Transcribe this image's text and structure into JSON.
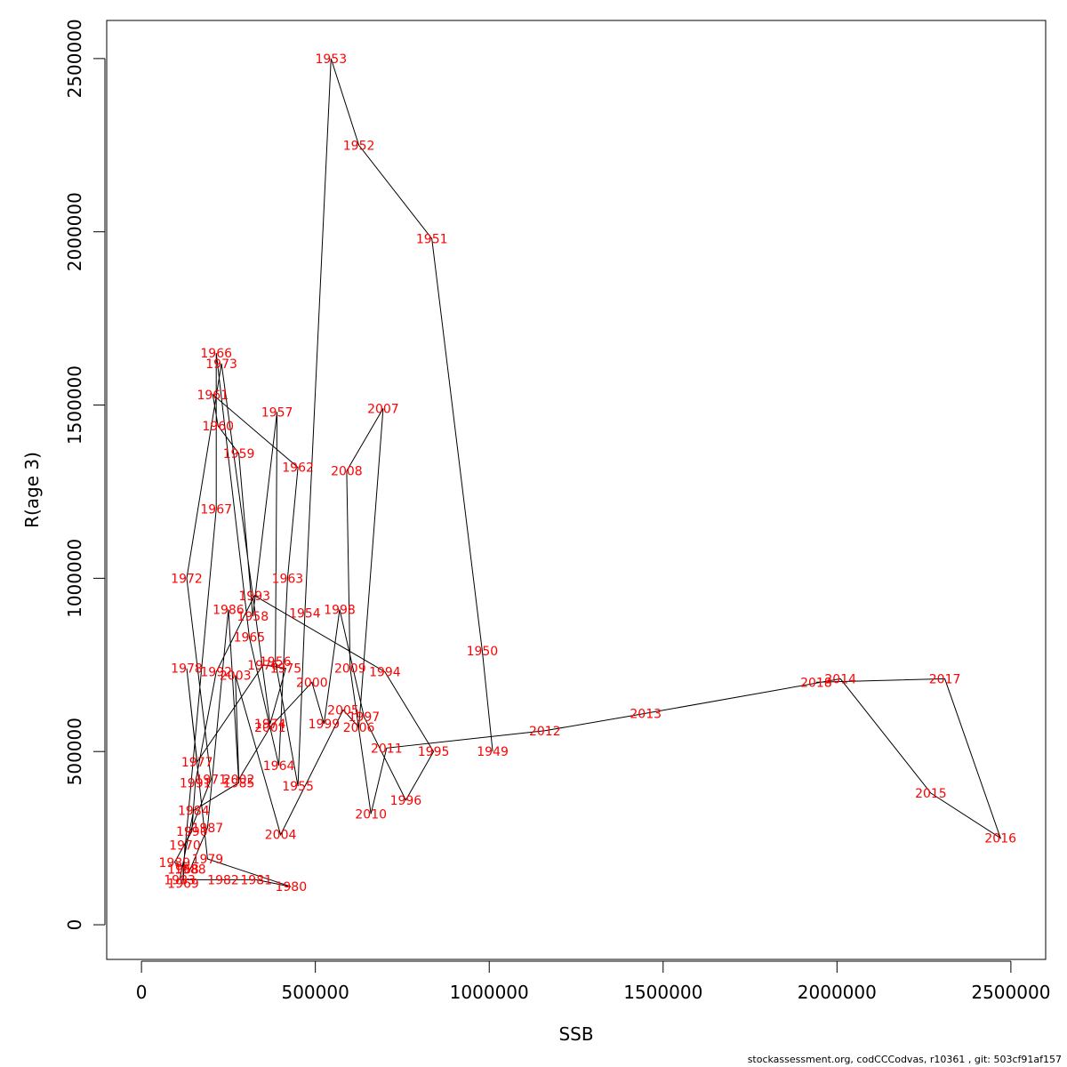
{
  "chart_data": {
    "type": "line",
    "xlabel": "SSB",
    "ylabel": "R(age 3)",
    "xlim": [
      -100000,
      2600000
    ],
    "ylim": [
      -100000,
      2610000
    ],
    "x_ticks": [
      0,
      500000,
      1000000,
      1500000,
      2000000,
      2500000
    ],
    "y_ticks": [
      0,
      500000,
      1000000,
      1500000,
      2000000,
      2500000
    ],
    "x_tick_labels": [
      "0",
      "500000",
      "1000000",
      "1500000",
      "2000000",
      "2500000"
    ],
    "y_tick_labels": [
      "0",
      "500000",
      "1000000",
      "1500000",
      "2000000",
      "2500000"
    ],
    "grid": false,
    "line_color": "#000000",
    "label_color": "#ff0000",
    "points": [
      {
        "label": "1949",
        "ssb": 1010000,
        "r": 500000
      },
      {
        "label": "1950",
        "ssb": 980000,
        "r": 790000
      },
      {
        "label": "1951",
        "ssb": 835000,
        "r": 1980000
      },
      {
        "label": "1952",
        "ssb": 625000,
        "r": 2250000
      },
      {
        "label": "1953",
        "ssb": 545000,
        "r": 2500000
      },
      {
        "label": "1954",
        "ssb": 470000,
        "r": 900000
      },
      {
        "label": "1955",
        "ssb": 450000,
        "r": 400000
      },
      {
        "label": "1956",
        "ssb": 385000,
        "r": 760000
      },
      {
        "label": "1957",
        "ssb": 390000,
        "r": 1480000
      },
      {
        "label": "1958",
        "ssb": 320000,
        "r": 890000
      },
      {
        "label": "1959",
        "ssb": 280000,
        "r": 1360000
      },
      {
        "label": "1960",
        "ssb": 220000,
        "r": 1440000
      },
      {
        "label": "1961",
        "ssb": 205000,
        "r": 1530000
      },
      {
        "label": "1962",
        "ssb": 450000,
        "r": 1320000
      },
      {
        "label": "1963",
        "ssb": 420000,
        "r": 1000000
      },
      {
        "label": "1964",
        "ssb": 395000,
        "r": 460000
      },
      {
        "label": "1965",
        "ssb": 310000,
        "r": 830000
      },
      {
        "label": "1966",
        "ssb": 215000,
        "r": 1650000
      },
      {
        "label": "1967",
        "ssb": 215000,
        "r": 1200000
      },
      {
        "label": "1968",
        "ssb": 120000,
        "r": 160000
      },
      {
        "label": "1969",
        "ssb": 120000,
        "r": 120000
      },
      {
        "label": "1970",
        "ssb": 125000,
        "r": 230000
      },
      {
        "label": "1971",
        "ssb": 200000,
        "r": 420000
      },
      {
        "label": "1972",
        "ssb": 130000,
        "r": 1000000
      },
      {
        "label": "1973",
        "ssb": 230000,
        "r": 1620000
      },
      {
        "label": "1974",
        "ssb": 370000,
        "r": 580000
      },
      {
        "label": "1975",
        "ssb": 415000,
        "r": 740000
      },
      {
        "label": "1976",
        "ssb": 350000,
        "r": 750000
      },
      {
        "label": "1977",
        "ssb": 160000,
        "r": 470000
      },
      {
        "label": "1978",
        "ssb": 130000,
        "r": 740000
      },
      {
        "label": "1979",
        "ssb": 190000,
        "r": 190000
      },
      {
        "label": "1980",
        "ssb": 430000,
        "r": 110000
      },
      {
        "label": "1981",
        "ssb": 330000,
        "r": 130000
      },
      {
        "label": "1982",
        "ssb": 235000,
        "r": 130000
      },
      {
        "label": "1983",
        "ssb": 110000,
        "r": 130000
      },
      {
        "label": "1984",
        "ssb": 150000,
        "r": 330000
      },
      {
        "label": "1985",
        "ssb": 280000,
        "r": 410000
      },
      {
        "label": "1986",
        "ssb": 250000,
        "r": 910000
      },
      {
        "label": "1987",
        "ssb": 190000,
        "r": 280000
      },
      {
        "label": "1988",
        "ssb": 140000,
        "r": 160000
      },
      {
        "label": "1989",
        "ssb": 95000,
        "r": 180000
      },
      {
        "label": "1990",
        "ssb": 145000,
        "r": 270000
      },
      {
        "label": "1991",
        "ssb": 155000,
        "r": 410000
      },
      {
        "label": "1992",
        "ssb": 215000,
        "r": 730000
      },
      {
        "label": "1993",
        "ssb": 325000,
        "r": 950000
      },
      {
        "label": "1994",
        "ssb": 700000,
        "r": 730000
      },
      {
        "label": "1995",
        "ssb": 840000,
        "r": 500000
      },
      {
        "label": "1996",
        "ssb": 760000,
        "r": 360000
      },
      {
        "label": "1997",
        "ssb": 640000,
        "r": 600000
      },
      {
        "label": "1998",
        "ssb": 570000,
        "r": 910000
      },
      {
        "label": "1999",
        "ssb": 525000,
        "r": 580000
      },
      {
        "label": "2000",
        "ssb": 490000,
        "r": 700000
      },
      {
        "label": "2001",
        "ssb": 370000,
        "r": 570000
      },
      {
        "label": "2002",
        "ssb": 280000,
        "r": 420000
      },
      {
        "label": "2003",
        "ssb": 270000,
        "r": 720000
      },
      {
        "label": "2004",
        "ssb": 400000,
        "r": 260000
      },
      {
        "label": "2005",
        "ssb": 580000,
        "r": 620000
      },
      {
        "label": "2006",
        "ssb": 625000,
        "r": 570000
      },
      {
        "label": "2007",
        "ssb": 695000,
        "r": 1490000
      },
      {
        "label": "2008",
        "ssb": 590000,
        "r": 1310000
      },
      {
        "label": "2009",
        "ssb": 600000,
        "r": 740000
      },
      {
        "label": "2010",
        "ssb": 660000,
        "r": 320000
      },
      {
        "label": "2011",
        "ssb": 705000,
        "r": 510000
      },
      {
        "label": "2012",
        "ssb": 1160000,
        "r": 560000
      },
      {
        "label": "2013",
        "ssb": 1450000,
        "r": 610000
      },
      {
        "label": "2014",
        "ssb": 2010000,
        "r": 710000
      },
      {
        "label": "2015",
        "ssb": 2270000,
        "r": 380000
      },
      {
        "label": "2016",
        "ssb": 2470000,
        "r": 250000
      },
      {
        "label": "2017",
        "ssb": 2310000,
        "r": 710000
      },
      {
        "label": "2018",
        "ssb": 1940000,
        "r": 700000
      }
    ]
  },
  "footer_text": "stockassessment.org, codCCCodvas, r10361 , git: 503cf91af157"
}
